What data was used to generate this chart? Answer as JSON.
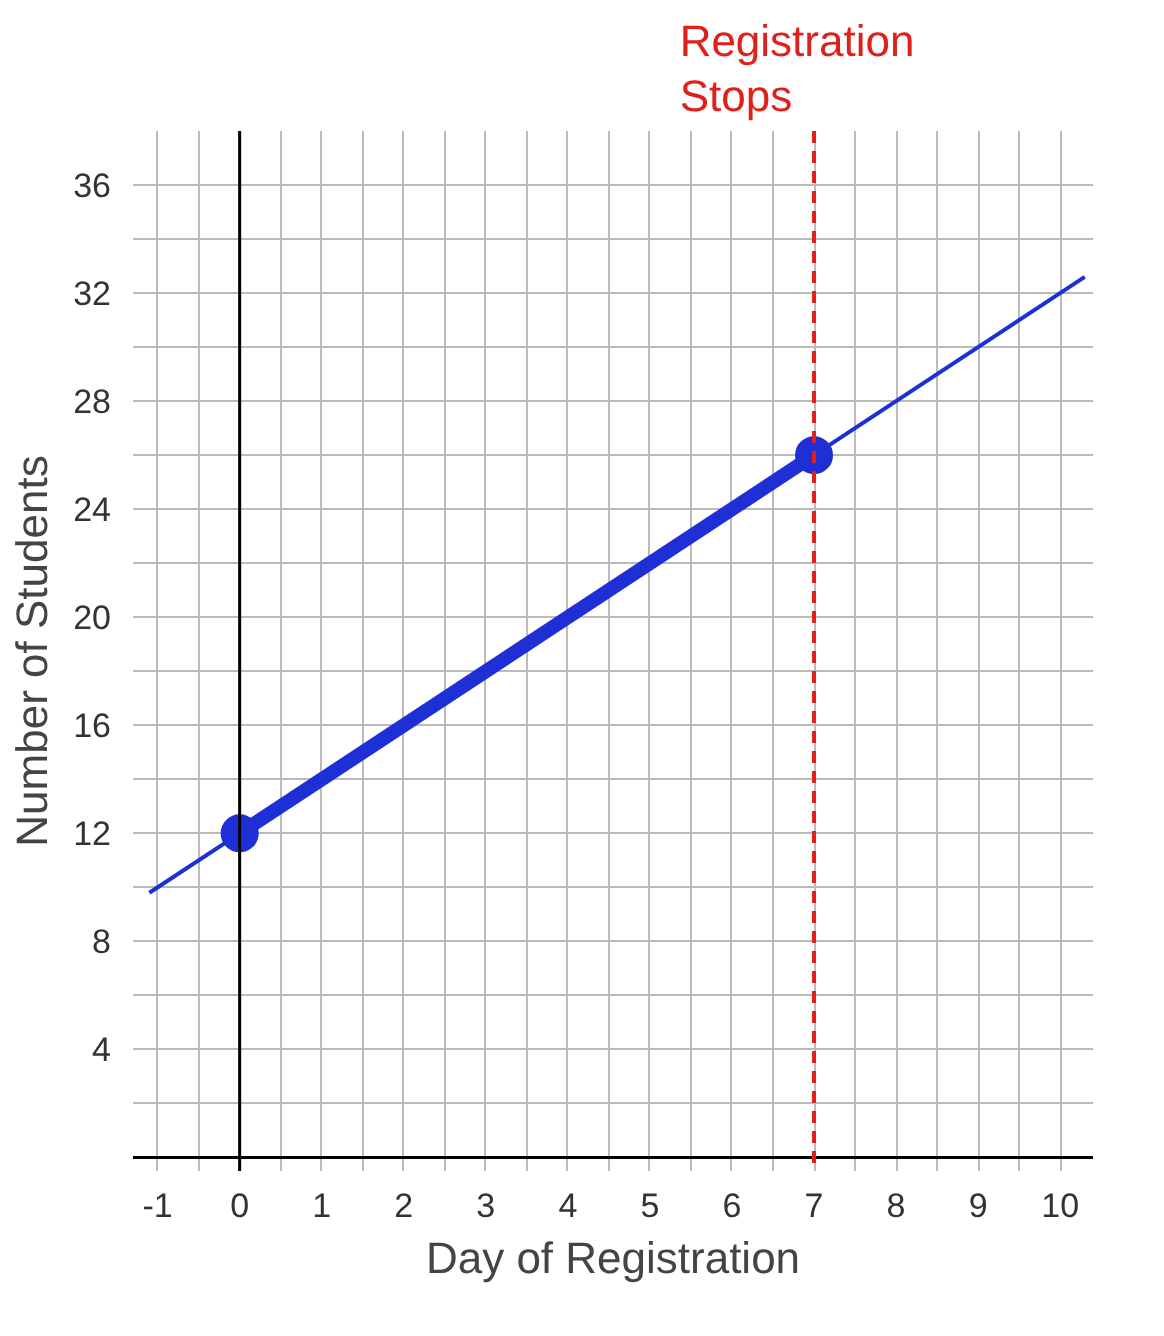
{
  "chart_data": {
    "type": "line",
    "xlabel": "Day of Registration",
    "ylabel": "Number of Students",
    "series": [
      {
        "color": "#1f2fd6",
        "x": [
          -1.1,
          10.3
        ],
        "values": [
          9.8,
          32.6
        ],
        "marker": "none"
      },
      {
        "color": "#1f2fd6",
        "x": [
          0,
          7
        ],
        "values": [
          12,
          26
        ],
        "marker": "circle"
      }
    ],
    "xlim": [
      -1.3,
      10.4
    ],
    "ylim": [
      -0.5,
      38
    ],
    "xticks": [
      -1,
      {
        "value": -0.5,
        "label": null
      },
      0,
      {
        "value": 0.5,
        "label": null
      },
      1,
      {
        "value": 1.5,
        "label": null
      },
      2,
      {
        "value": 2.5,
        "label": null
      },
      3,
      {
        "value": 3.5,
        "label": null
      },
      4,
      {
        "value": 4.5,
        "label": null
      },
      5,
      {
        "value": 5.5,
        "label": null
      },
      6,
      {
        "value": 6.5,
        "label": null
      },
      7,
      {
        "value": 7.5,
        "label": null
      },
      8,
      {
        "value": 8.5,
        "label": null
      },
      9,
      {
        "value": 9.5,
        "label": null
      },
      10
    ],
    "yticks": [
      {
        "value": 0,
        "label": null
      },
      {
        "value": 2,
        "label": null
      },
      4,
      {
        "value": 6,
        "label": null
      },
      8,
      {
        "value": 10,
        "label": null
      },
      12,
      {
        "value": 14,
        "label": null
      },
      16,
      {
        "value": 18,
        "label": null
      },
      20,
      {
        "value": 22,
        "label": null
      },
      24,
      {
        "value": 26,
        "label": null
      },
      28,
      {
        "value": 30,
        "label": null
      },
      32,
      {
        "value": 34,
        "label": null
      },
      36
    ],
    "ref_lines": [
      {
        "axis": "x",
        "value": 7,
        "label": "Registration Stops",
        "color": "#e0201b",
        "line_style": "dashed"
      }
    ],
    "grid": true
  }
}
